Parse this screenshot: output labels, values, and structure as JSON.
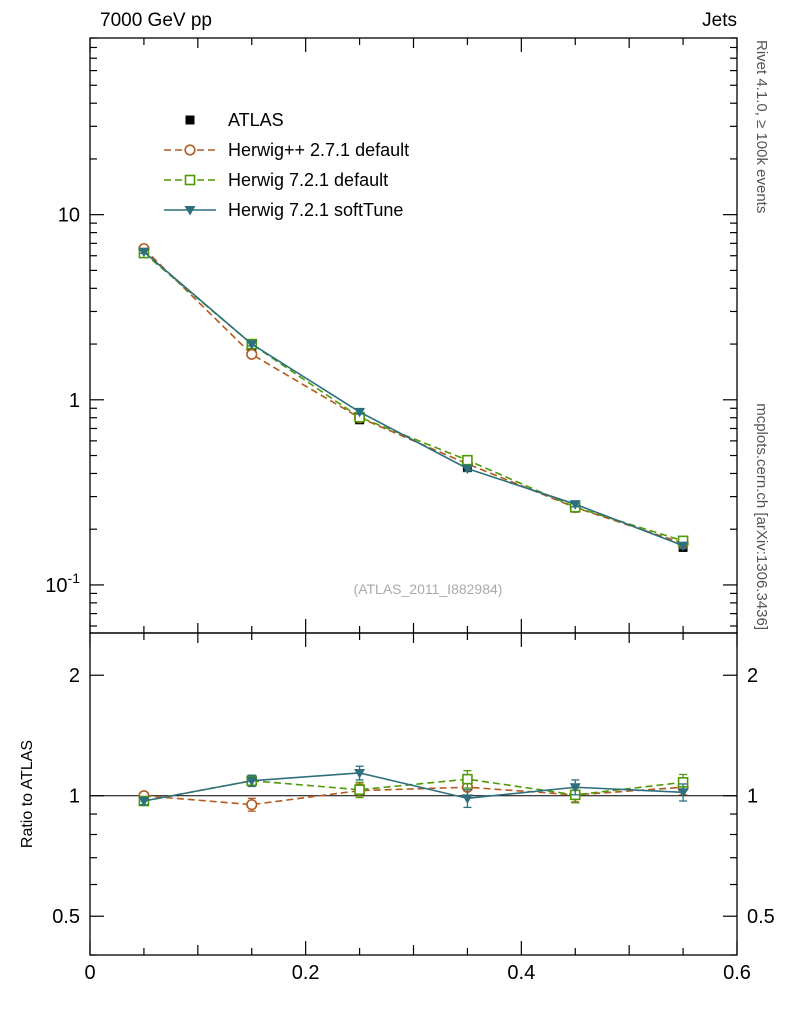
{
  "header": {
    "left": "7000 GeV pp",
    "right": "Jets"
  },
  "side_notes": {
    "top": "Rivet 4.1.0, ≥ 100k events",
    "bottom": "mcplots.cern.ch [arXiv:1306.3436]"
  },
  "watermark": "(ATLAS_2011_I882984)",
  "axes": {
    "ratio_ylabel": "Ratio to ATLAS"
  },
  "chart_data": {
    "type": "line",
    "title": "7000 GeV pp — Jets",
    "x": [
      0.05,
      0.15,
      0.25,
      0.35,
      0.45,
      0.55
    ],
    "xlim": [
      0,
      0.6
    ],
    "xticks": {
      "major": [
        0,
        0.2,
        0.4,
        0.6
      ],
      "labels": [
        "0",
        "0.2",
        "0.4",
        "0.6"
      ],
      "minor_step": 0.05
    },
    "legend_position": "top-left",
    "main_panel": {
      "yscale": "log",
      "ylim": [
        0.055,
        90
      ],
      "yticks": [
        {
          "value": 10,
          "label": "10"
        },
        {
          "value": 1,
          "label": "1"
        },
        {
          "value": 0.1,
          "label": "10^-1"
        }
      ],
      "series": [
        {
          "name": "ATLAS",
          "color": "#000000",
          "marker": "square",
          "line": "none",
          "values": [
            6.4,
            1.85,
            0.78,
            0.43,
            0.26,
            0.16
          ],
          "errors": [
            0.26,
            0.08,
            0.033,
            0.018,
            0.012,
            0.008
          ]
        },
        {
          "name": "Herwig++ 2.7.1 default",
          "color": "#b35a1f",
          "marker": "circle-open",
          "line": "dashed",
          "values": [
            6.55,
            1.76,
            0.8,
            0.451,
            0.262,
            0.168
          ],
          "errors": [
            0.12,
            0.04,
            0.02,
            0.013,
            0.009,
            0.006
          ]
        },
        {
          "name": "Herwig 7.2.1 default",
          "color": "#4e9a06",
          "marker": "square-open",
          "line": "dashed",
          "values": [
            6.2,
            2.0,
            0.805,
            0.472,
            0.263,
            0.173
          ],
          "errors": [
            0.12,
            0.045,
            0.021,
            0.014,
            0.009,
            0.006
          ]
        },
        {
          "name": "Herwig 7.2.1 softTune",
          "color": "#2e6f7e",
          "marker": "triangle-down",
          "line": "solid",
          "values": [
            6.3,
            2.0,
            0.86,
            0.425,
            0.273,
            0.163
          ],
          "errors": [
            0.12,
            0.045,
            0.022,
            0.013,
            0.009,
            0.006
          ]
        }
      ]
    },
    "ratio_panel": {
      "yscale": "log",
      "ylim": [
        0.4,
        2.55
      ],
      "reference": 1,
      "yticks": [
        {
          "value": 2,
          "label": "2"
        },
        {
          "value": 1,
          "label": "1"
        },
        {
          "value": 0.5,
          "label": "0.5"
        }
      ],
      "minor_ticks": [
        0.4,
        0.6,
        0.7,
        0.8,
        0.9
      ],
      "series": [
        {
          "name": "Herwig++ 2.7.1 default",
          "values": [
            1.0,
            0.95,
            1.03,
            1.05,
            1.005,
            1.05
          ],
          "errors": [
            0.02,
            0.035,
            0.04,
            0.05,
            0.04,
            0.045
          ]
        },
        {
          "name": "Herwig 7.2.1 default",
          "values": [
            0.97,
            1.09,
            1.035,
            1.1,
            1.005,
            1.08
          ],
          "errors": [
            0.02,
            0.035,
            0.045,
            0.055,
            0.045,
            0.05
          ]
        },
        {
          "name": "Herwig 7.2.1 softTune",
          "values": [
            0.97,
            1.09,
            1.14,
            0.985,
            1.05,
            1.02
          ],
          "errors": [
            0.02,
            0.035,
            0.045,
            0.05,
            0.045,
            0.05
          ]
        }
      ]
    }
  }
}
